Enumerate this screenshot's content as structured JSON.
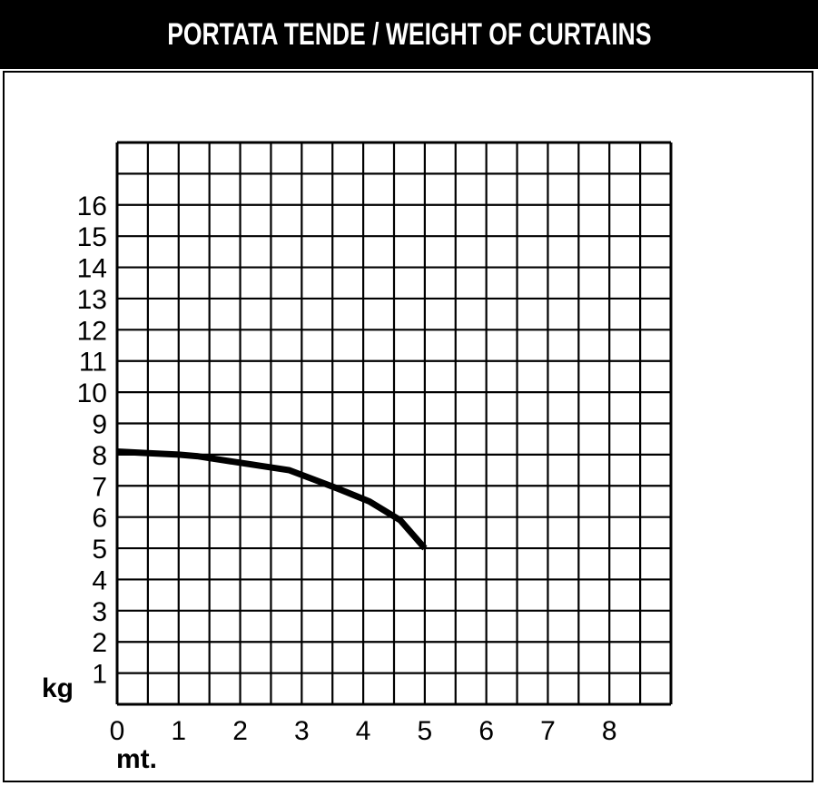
{
  "title": "PORTATA TENDE / WEIGHT OF CURTAINS",
  "chart_data": {
    "type": "line",
    "title": "PORTATA TENDE / WEIGHT OF CURTAINS",
    "xlabel": "mt.",
    "ylabel": "kg",
    "xlim": [
      0,
      9
    ],
    "ylim": [
      0,
      18
    ],
    "x_ticks": [
      "0",
      "1",
      "2",
      "3",
      "4",
      "5",
      "6",
      "7",
      "8"
    ],
    "y_ticks": [
      "1",
      "2",
      "3",
      "4",
      "5",
      "6",
      "7",
      "8",
      "9",
      "10",
      "11",
      "12",
      "13",
      "14",
      "15",
      "16"
    ],
    "grid": true,
    "series": [
      {
        "color": "#000000",
        "x": [
          0,
          0.5,
          1,
          1.3,
          1.8,
          2.3,
          2.8,
          3.2,
          3.6,
          4.1,
          4.6,
          5.0
        ],
        "y": [
          8.1,
          8.05,
          8.0,
          7.95,
          7.8,
          7.65,
          7.5,
          7.2,
          6.9,
          6.5,
          5.9,
          5.0
        ]
      }
    ]
  }
}
